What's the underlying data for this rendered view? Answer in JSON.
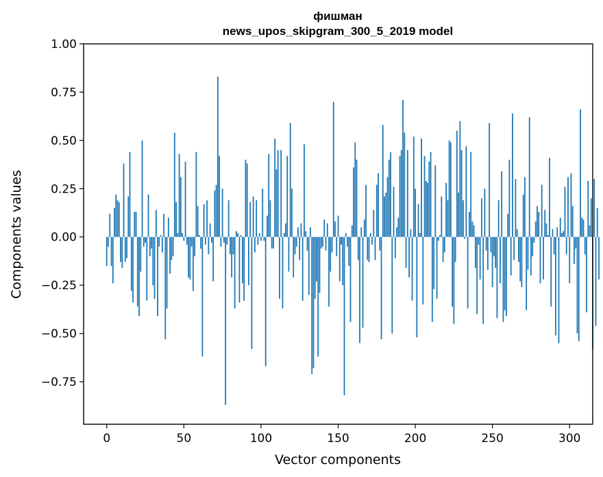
{
  "chart_data": {
    "type": "bar",
    "title_line1": "фишман",
    "title_line2": "news_upos_skipgram_300_5_2019 model",
    "xlabel": "Vector components",
    "ylabel": "Components values",
    "xlim": [
      -15,
      315
    ],
    "ylim": [
      -0.97,
      1.0
    ],
    "xticks": [
      0,
      50,
      100,
      150,
      200,
      250,
      300
    ],
    "xtick_labels": [
      "0",
      "50",
      "100",
      "150",
      "200",
      "250",
      "300"
    ],
    "yticks": [
      1.0,
      0.75,
      0.5,
      0.25,
      0.0,
      -0.25,
      -0.5,
      -0.75
    ],
    "ytick_labels": [
      "1.00",
      "0.75",
      "0.50",
      "0.25",
      "0.00",
      "−0.25",
      "−0.50",
      "−0.75"
    ],
    "bar_color": "#1f77b4",
    "categories_start": 0,
    "values": [
      -0.15,
      -0.05,
      0.12,
      -0.15,
      -0.24,
      0.15,
      0.22,
      0.19,
      0.18,
      -0.13,
      -0.16,
      0.38,
      -0.13,
      -0.11,
      0.21,
      0.44,
      -0.28,
      -0.34,
      0.13,
      0.13,
      -0.36,
      -0.41,
      -0.18,
      0.5,
      -0.05,
      -0.03,
      -0.33,
      0.22,
      -0.1,
      -0.06,
      -0.25,
      -0.32,
      0.14,
      -0.41,
      -0.05,
      0.01,
      -0.08,
      0.12,
      -0.53,
      -0.37,
      0.1,
      -0.19,
      -0.12,
      -0.1,
      0.54,
      0.18,
      0.02,
      0.43,
      0.31,
      0.02,
      -0.02,
      0.39,
      -0.04,
      -0.21,
      -0.22,
      -0.05,
      -0.28,
      -0.1,
      0.44,
      0.16,
      0.01,
      -0.06,
      -0.62,
      0.17,
      -0.04,
      0.19,
      -0.09,
      0.07,
      -0.03,
      -0.23,
      0.24,
      0.27,
      0.83,
      0.42,
      -0.05,
      0.25,
      -0.03,
      -0.87,
      -0.04,
      0.19,
      -0.09,
      -0.21,
      -0.09,
      -0.37,
      0.03,
      0.02,
      -0.34,
      0.01,
      -0.24,
      -0.33,
      0.4,
      0.38,
      -0.25,
      0.18,
      -0.58,
      0.21,
      -0.08,
      0.19,
      -0.04,
      0.02,
      -0.02,
      0.25,
      -0.02,
      -0.67,
      0.11,
      0.43,
      0.19,
      -0.06,
      -0.06,
      0.51,
      0.35,
      0.45,
      -0.32,
      0.45,
      -0.37,
      0.02,
      0.07,
      0.42,
      -0.18,
      0.59,
      0.25,
      -0.21,
      -0.09,
      -0.05,
      0.05,
      -0.12,
      0.07,
      -0.33,
      0.48,
      0.03,
      -0.07,
      -0.3,
      0.05,
      -0.71,
      -0.68,
      -0.32,
      -0.23,
      -0.62,
      -0.29,
      -0.06,
      -0.05,
      0.09,
      -0.07,
      0.07,
      -0.36,
      -0.18,
      -0.08,
      0.7,
      0.08,
      -0.1,
      0.11,
      -0.23,
      -0.04,
      -0.25,
      -0.82,
      0.02,
      -0.05,
      -0.15,
      -0.44,
      0.06,
      0.36,
      0.49,
      0.4,
      -0.12,
      -0.55,
      0.05,
      -0.47,
      0.09,
      0.27,
      -0.12,
      -0.13,
      0.02,
      -0.04,
      0.14,
      -0.12,
      0.27,
      0.33,
      -0.07,
      -0.53,
      0.58,
      0.21,
      0.23,
      0.31,
      0.4,
      0.44,
      -0.5,
      0.26,
      -0.11,
      0.05,
      0.1,
      0.42,
      0.45,
      0.71,
      0.54,
      -0.16,
      0.45,
      -0.21,
      0.04,
      -0.33,
      0.52,
      0.25,
      -0.52,
      0.17,
      0.02,
      0.51,
      -0.35,
      0.42,
      0.29,
      0.28,
      0.39,
      0.44,
      -0.44,
      -0.27,
      0.37,
      -0.32,
      -0.02,
      0.01,
      0.21,
      -0.13,
      -0.08,
      0.28,
      0.19,
      0.5,
      0.49,
      -0.36,
      -0.45,
      -0.13,
      0.55,
      0.23,
      0.6,
      0.45,
      0.19,
      -0.01,
      0.47,
      -0.37,
      0.13,
      0.44,
      0.08,
      0.06,
      -0.16,
      -0.4,
      -0.04,
      -0.22,
      0.2,
      -0.45,
      0.25,
      -0.07,
      -0.17,
      0.59,
      -0.08,
      -0.26,
      -0.1,
      -0.16,
      -0.42,
      0.19,
      -0.24,
      0.34,
      -0.44,
      -0.38,
      -0.41,
      0.12,
      0.4,
      -0.2,
      0.64,
      -0.12,
      0.3,
      0.04,
      -0.13,
      -0.23,
      -0.26,
      0.22,
      0.31,
      -0.38,
      -0.17,
      0.62,
      -0.2,
      -0.1,
      -0.03,
      0.08,
      0.16,
      0.13,
      -0.24,
      0.27,
      -0.22,
      0.14,
      0.07,
      0.01,
      0.41,
      -0.36,
      0.04,
      -0.09,
      -0.51,
      0.05,
      -0.55,
      0.1,
      0.02,
      0.03,
      0.26,
      -0.09,
      0.31,
      -0.24,
      0.33,
      0.16,
      -0.14,
      -0.06,
      -0.5,
      -0.54,
      0.66,
      0.1,
      0.09,
      -0.09,
      -0.39,
      0.29,
      0.06,
      0.2,
      -0.58,
      0.3,
      -0.46,
      0.15,
      -0.22
    ]
  }
}
